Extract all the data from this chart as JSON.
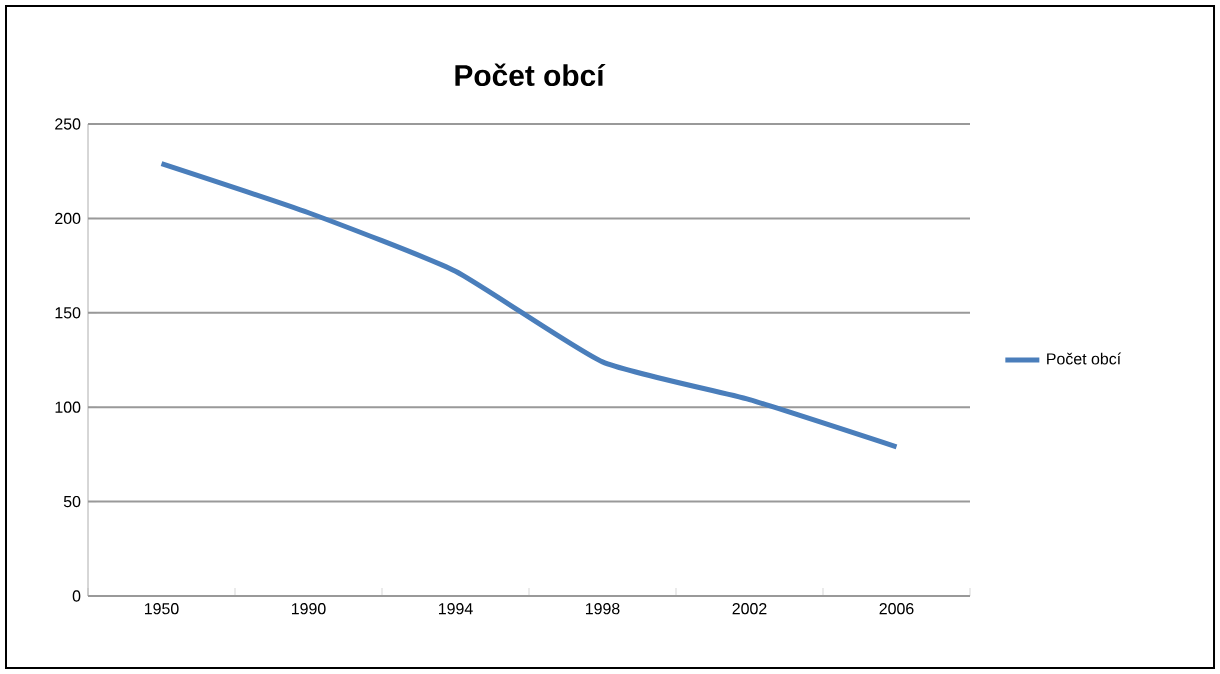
{
  "chart_data": {
    "type": "line",
    "title": "Počet obcí",
    "categories": [
      "1950",
      "1990",
      "1994",
      "1998",
      "2002",
      "2006"
    ],
    "series": [
      {
        "name": "Počet obcí",
        "color": "#4a7ebb",
        "values": [
          229,
          203,
          172,
          124,
          104,
          79
        ]
      }
    ],
    "ylim": [
      0,
      250
    ],
    "yticks": [
      0,
      50,
      100,
      150,
      200,
      250
    ],
    "grid": "y",
    "legend": "right",
    "marker": "none",
    "line_style": "solid"
  }
}
